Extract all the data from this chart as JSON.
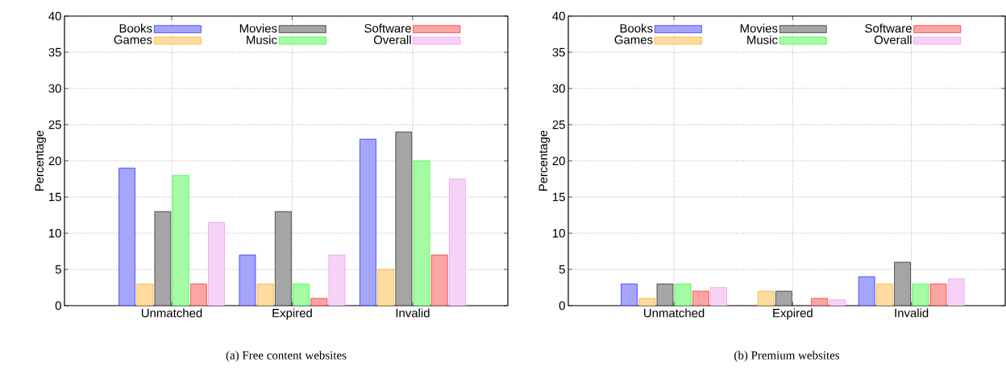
{
  "chart_data": [
    {
      "type": "bar",
      "ylabel": "Percentage",
      "categories": [
        "Unmatched",
        "Expired",
        "Invalid"
      ],
      "ylim": [
        0,
        40
      ],
      "yticks": [
        0,
        5,
        10,
        15,
        20,
        25,
        30,
        35,
        40
      ],
      "grid": true,
      "legend": "top",
      "annotations": [
        "(a) Free content websites"
      ],
      "series": [
        {
          "name": "Books",
          "color": "#a5a5fc",
          "values": [
            19,
            7,
            23
          ]
        },
        {
          "name": "Games",
          "color": "#fedb9e",
          "values": [
            3,
            3,
            5
          ]
        },
        {
          "name": "Movies",
          "color": "#a5a5a5",
          "values": [
            13,
            13,
            24
          ]
        },
        {
          "name": "Music",
          "color": "#a5fca5",
          "values": [
            18,
            3,
            20
          ]
        },
        {
          "name": "Software",
          "color": "#fca5a5",
          "values": [
            3,
            1,
            7
          ]
        },
        {
          "name": "Overall",
          "color": "#f7d2f7",
          "values": [
            11.5,
            7,
            17.5
          ]
        }
      ]
    },
    {
      "type": "bar",
      "ylabel": "Percentage",
      "categories": [
        "Unmatched",
        "Expired",
        "Invalid"
      ],
      "ylim": [
        0,
        40
      ],
      "yticks": [
        0,
        5,
        10,
        15,
        20,
        25,
        30,
        35,
        40
      ],
      "grid": true,
      "legend": "top",
      "annotations": [
        "(b) Premium websites"
      ],
      "series": [
        {
          "name": "Books",
          "color": "#a5a5fc",
          "values": [
            3,
            null,
            4
          ]
        },
        {
          "name": "Games",
          "color": "#fedb9e",
          "values": [
            1,
            2,
            3
          ]
        },
        {
          "name": "Movies",
          "color": "#a5a5a5",
          "values": [
            3,
            2,
            6
          ]
        },
        {
          "name": "Music",
          "color": "#a5fca5",
          "values": [
            3,
            null,
            3
          ]
        },
        {
          "name": "Software",
          "color": "#fca5a5",
          "values": [
            2,
            1,
            3
          ]
        },
        {
          "name": "Overall",
          "color": "#f7d2f7",
          "values": [
            2.5,
            0.8,
            3.7
          ]
        }
      ]
    }
  ]
}
